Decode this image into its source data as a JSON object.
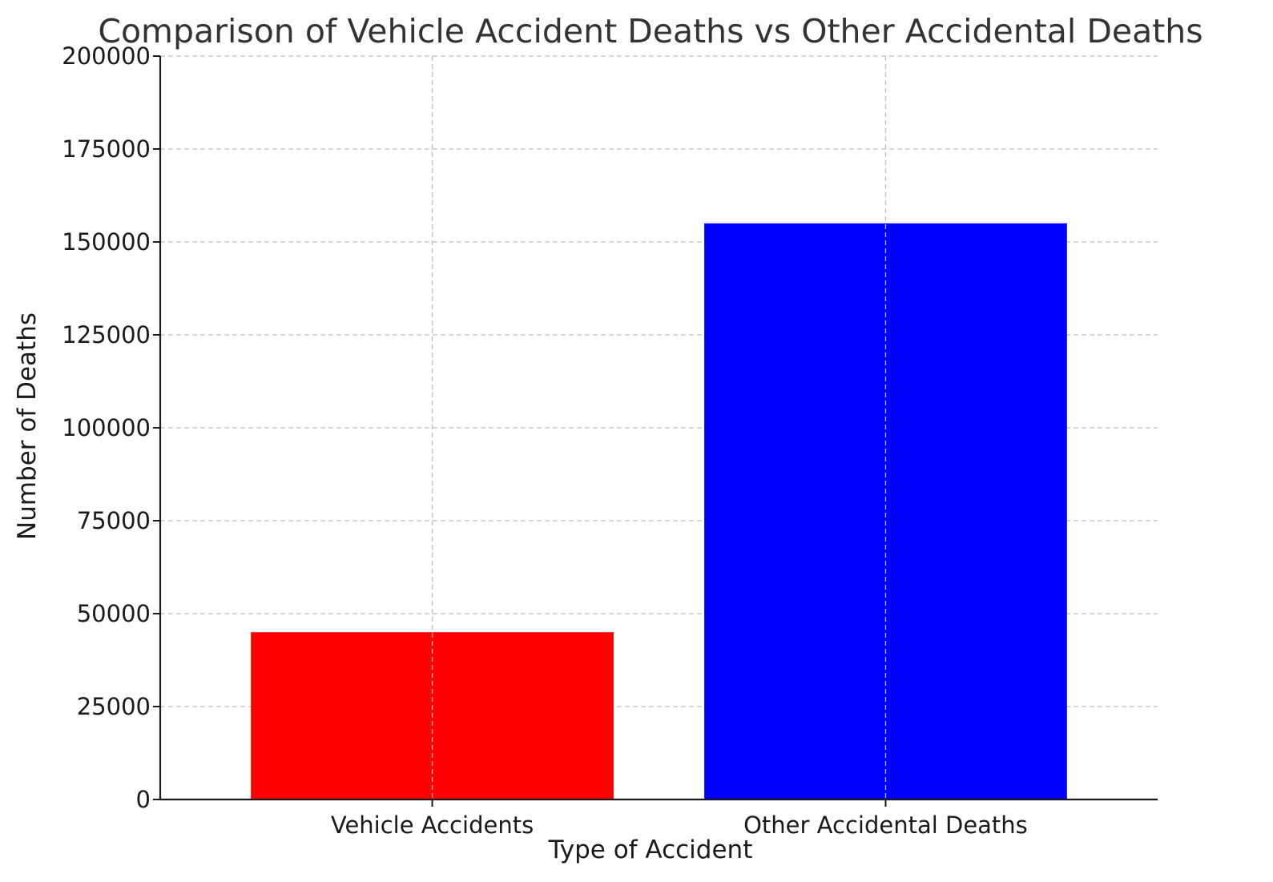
{
  "chart_data": {
    "type": "bar",
    "title": "Comparison of Vehicle Accident Deaths vs Other Accidental Deaths",
    "xlabel": "Type of Accident",
    "ylabel": "Number of Deaths",
    "categories": [
      "Vehicle Accidents",
      "Other Accidental Deaths"
    ],
    "values": [
      45000,
      155000
    ],
    "colors": [
      "#ff0000",
      "#0000ff"
    ],
    "ylim": [
      0,
      200000
    ],
    "yticks": [
      "0",
      "25000",
      "50000",
      "75000",
      "100000",
      "125000",
      "150000",
      "175000",
      "200000"
    ],
    "grid": true,
    "legend": "none"
  }
}
